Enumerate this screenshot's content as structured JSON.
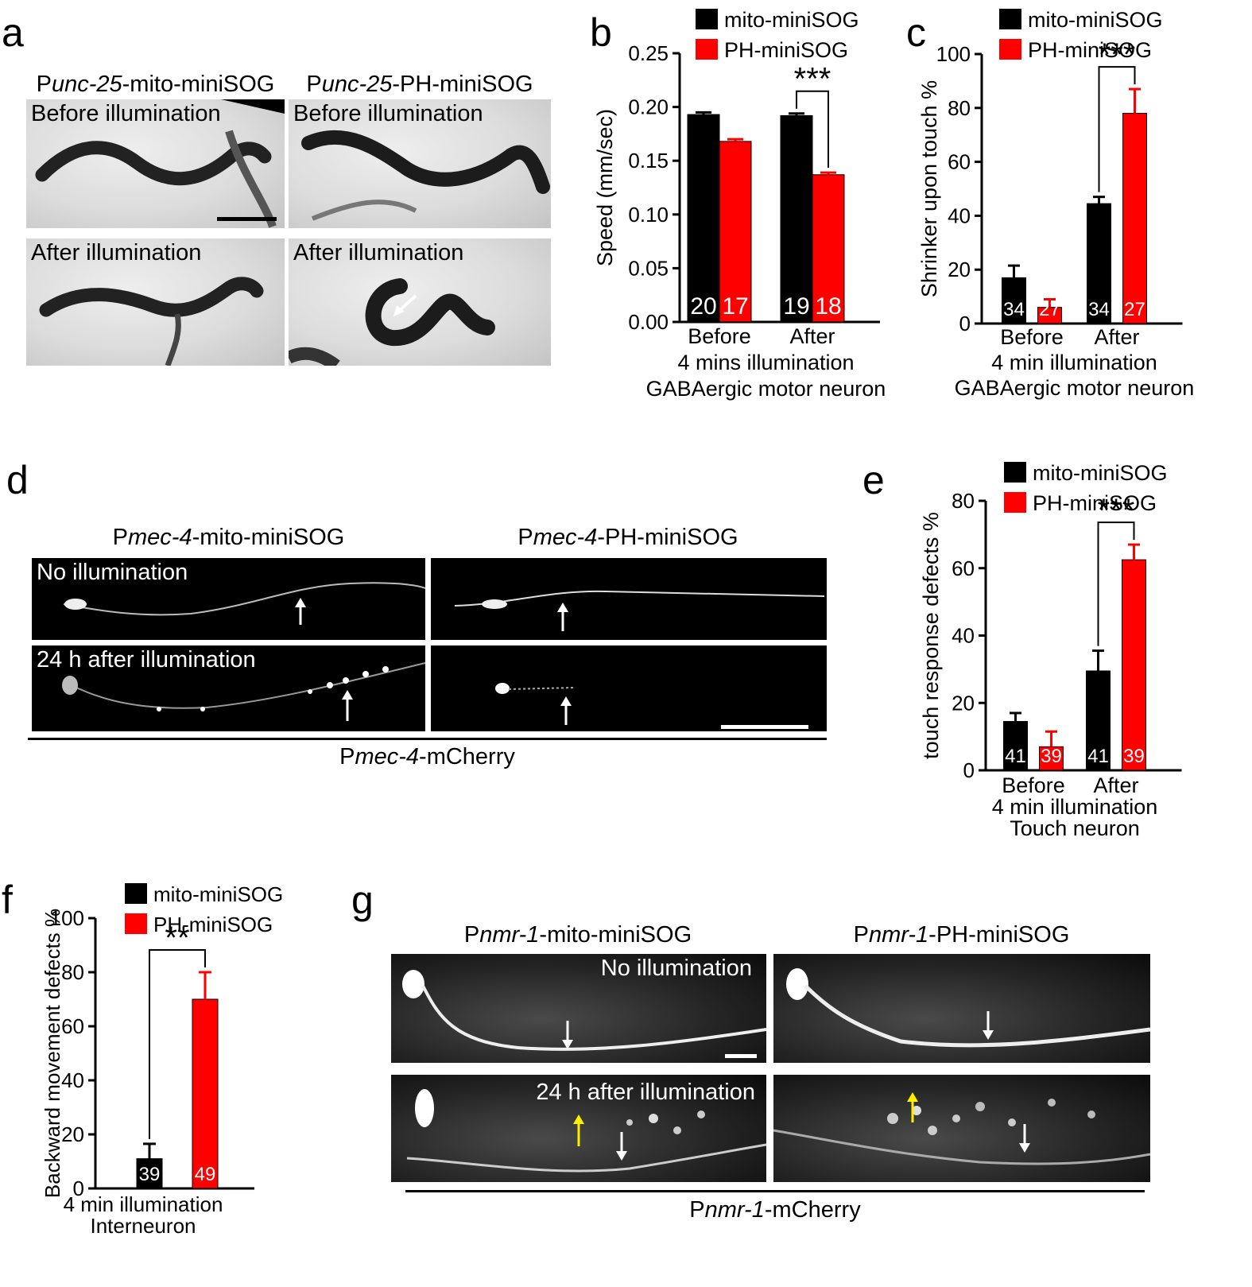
{
  "panels": {
    "a": {
      "letter": "a",
      "col1": {
        "prefix": "P",
        "gene": "unc-25",
        "suffix": "-mito-miniSOG"
      },
      "col2": {
        "prefix": "P",
        "gene": "unc-25",
        "suffix": "-PH-miniSOG"
      },
      "before": "Before illumination",
      "after": "After illumination"
    },
    "b": {
      "letter": "b"
    },
    "c": {
      "letter": "c"
    },
    "d": {
      "letter": "d",
      "col1": {
        "prefix": "P",
        "gene": "mec-4",
        "suffix": "-mito-miniSOG"
      },
      "col2": {
        "prefix": "P",
        "gene": "mec-4",
        "suffix": "-PH-miniSOG"
      },
      "row1": "No illumination",
      "row2": "24 h after illumination",
      "bottom": {
        "prefix": "P",
        "gene": "mec-4",
        "suffix": "-mCherry"
      }
    },
    "e": {
      "letter": "e"
    },
    "f": {
      "letter": "f"
    },
    "g": {
      "letter": "g",
      "col1": {
        "prefix": "P",
        "gene": "nmr-1",
        "suffix": "-mito-miniSOG"
      },
      "col2": {
        "prefix": "P",
        "gene": "nmr-1",
        "suffix": "-PH-miniSOG"
      },
      "row1": "No illumination",
      "row2": "24 h after illumination",
      "bottom": {
        "prefix": "P",
        "gene": "nmr-1",
        "suffix": "-mCherry"
      }
    }
  },
  "chart_data": [
    {
      "panel": "b",
      "type": "bar",
      "categories": [
        "Before",
        "After"
      ],
      "xlabel_lines": [
        "4 mins illumination",
        "GABAergic motor neuron"
      ],
      "ylabel": "Speed (mm/sec)",
      "ylim": [
        0,
        0.25
      ],
      "yticks": [
        "0.00",
        "0.05",
        "0.10",
        "0.15",
        "0.20",
        "0.25"
      ],
      "series": [
        {
          "name": "mito-miniSOG",
          "color": "#000000",
          "values": [
            0.193,
            0.192
          ],
          "errors": [
            0.002,
            0.002
          ],
          "n": [
            "20",
            "19"
          ]
        },
        {
          "name": "PH-miniSOG",
          "color": "#ff0000",
          "values": [
            0.168,
            0.137
          ],
          "errors": [
            0.002,
            0.002
          ],
          "n": [
            "17",
            "18"
          ]
        }
      ],
      "significance": [
        {
          "category": 1,
          "label": "***"
        }
      ]
    },
    {
      "panel": "c",
      "type": "bar",
      "categories": [
        "Before",
        "After"
      ],
      "xlabel_lines": [
        "4 min illumination",
        "GABAergic motor neuron"
      ],
      "ylabel": "Shrinker upon touch %",
      "ylim": [
        0,
        100
      ],
      "yticks": [
        "0",
        "20",
        "40",
        "60",
        "80",
        "100"
      ],
      "series": [
        {
          "name": "mito-miniSOG",
          "color": "#000000",
          "values": [
            17,
            44.5
          ],
          "errors": [
            4.5,
            2.5
          ],
          "n": [
            "34",
            "34"
          ]
        },
        {
          "name": "PH-miniSOG",
          "color": "#ff0000",
          "values": [
            6,
            78
          ],
          "errors": [
            3,
            9
          ],
          "n": [
            "27",
            "27"
          ]
        }
      ],
      "significance": [
        {
          "category": 1,
          "label": "***"
        }
      ]
    },
    {
      "panel": "e",
      "type": "bar",
      "categories": [
        "Before",
        "After"
      ],
      "xlabel_lines": [
        "4 min illumination",
        "Touch neuron"
      ],
      "ylabel": "touch response defects %",
      "ylim": [
        0,
        80
      ],
      "yticks": [
        "0",
        "20",
        "40",
        "60",
        "80"
      ],
      "series": [
        {
          "name": "mito-miniSOG",
          "color": "#000000",
          "values": [
            14.5,
            29.5
          ],
          "errors": [
            2.5,
            6
          ],
          "n": [
            "41",
            "41"
          ]
        },
        {
          "name": "PH-miniSOG",
          "color": "#ff0000",
          "values": [
            7,
            62.5
          ],
          "errors": [
            4.5,
            4.5
          ],
          "n": [
            "39",
            "39"
          ]
        }
      ],
      "significance": [
        {
          "category": 1,
          "label": "***"
        }
      ]
    },
    {
      "panel": "f",
      "type": "bar",
      "categories": [
        ""
      ],
      "xlabel_lines": [
        "4 min illumination",
        "Interneuron"
      ],
      "ylabel": "Backward movement defects %",
      "ylim": [
        0,
        100
      ],
      "yticks": [
        "0",
        "20",
        "40",
        "60",
        "80",
        "100"
      ],
      "series": [
        {
          "name": "mito-miniSOG",
          "color": "#000000",
          "values": [
            11
          ],
          "errors": [
            5.5
          ],
          "n": [
            "39"
          ]
        },
        {
          "name": "PH-miniSOG",
          "color": "#ff0000",
          "values": [
            70
          ],
          "errors": [
            10
          ],
          "n": [
            "49"
          ]
        }
      ],
      "significance": [
        {
          "category": 0,
          "label": "**"
        }
      ]
    }
  ]
}
